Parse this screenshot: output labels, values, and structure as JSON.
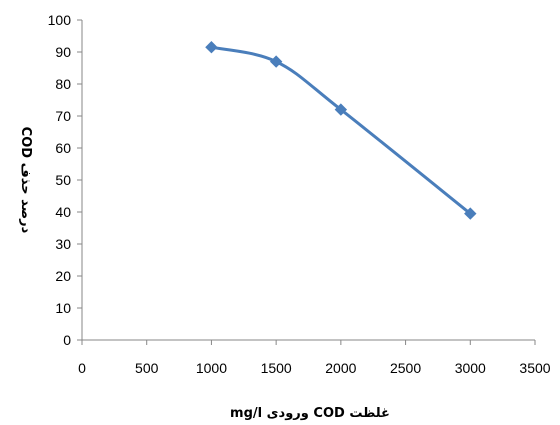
{
  "chart_data": {
    "type": "line",
    "title": "",
    "xlabel": "غلظت COD ورودی mg/l",
    "ylabel": "درصد حذف COD",
    "xlim": [
      0,
      3500
    ],
    "ylim": [
      0,
      100
    ],
    "x_ticks": [
      0,
      500,
      1000,
      1500,
      2000,
      2500,
      3000,
      3500
    ],
    "y_ticks": [
      0,
      10,
      20,
      30,
      40,
      50,
      60,
      70,
      80,
      90,
      100
    ],
    "grid": false,
    "legend": "none",
    "series": [
      {
        "color": "#4a7ebb",
        "marker": "diamond",
        "smooth": true,
        "x": [
          1000,
          1500,
          2000,
          3000
        ],
        "y": [
          91.5,
          87,
          72,
          39.5
        ]
      }
    ]
  }
}
